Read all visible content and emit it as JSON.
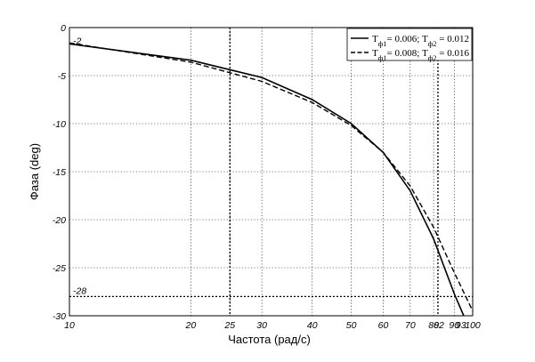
{
  "chart_data": {
    "type": "line",
    "xscale": "log",
    "xlabel": "Частота (рад/с)",
    "ylabel": "Фаза (deg)",
    "xlim": [
      10,
      100
    ],
    "ylim": [
      -30,
      0
    ],
    "grid": true,
    "legend_position": "top-right",
    "x_ticks": [
      10,
      20,
      25,
      30,
      40,
      50,
      60,
      70,
      80,
      90,
      100
    ],
    "x_tick_labels": [
      "10",
      "20",
      "25",
      "30",
      "40",
      "50",
      "60",
      "70",
      "80",
      "90",
      "100"
    ],
    "extra_x_ticks": [
      82,
      93
    ],
    "extra_x_tick_labels": [
      "82",
      "93"
    ],
    "y_ticks": [
      0,
      -5,
      -10,
      -15,
      -20,
      -25,
      -30
    ],
    "y_tick_labels": [
      "0",
      "-5",
      "-10",
      "-15",
      "-20",
      "-25",
      "-30"
    ],
    "reference_lines": {
      "x": [
        25,
        82
      ],
      "y": [
        -28
      ]
    },
    "annotations": [
      {
        "text": "-2",
        "x": 10,
        "y": -2
      },
      {
        "text": "-28",
        "x": 10,
        "y": -28
      }
    ],
    "series": [
      {
        "name_parts": [
          {
            "t": "T"
          },
          {
            "t": "ф1",
            "sub": true
          },
          {
            "t": "= 0.006; T"
          },
          {
            "t": "ф2",
            "sub": true
          },
          {
            "t": " = 0.012"
          }
        ],
        "style": "solid",
        "color": "#000000",
        "x": [
          10,
          20,
          30,
          40,
          50,
          60,
          70,
          80,
          90,
          95
        ],
        "y": [
          -1.7,
          -3.4,
          -5.2,
          -7.5,
          -10.0,
          -13.0,
          -17.0,
          -22.0,
          -27.7,
          -30.0
        ]
      },
      {
        "name_parts": [
          {
            "t": "T"
          },
          {
            "t": "ф1",
            "sub": true
          },
          {
            "t": "= 0.008; T"
          },
          {
            "t": "ф2",
            "sub": true
          },
          {
            "t": " = 0.016"
          }
        ],
        "style": "dashed",
        "color": "#000000",
        "x": [
          10,
          20,
          30,
          40,
          50,
          60,
          70,
          80,
          90,
          100
        ],
        "y": [
          -1.6,
          -3.6,
          -5.6,
          -7.8,
          -10.2,
          -13.0,
          -16.5,
          -20.8,
          -25.5,
          -29.5
        ]
      }
    ]
  }
}
